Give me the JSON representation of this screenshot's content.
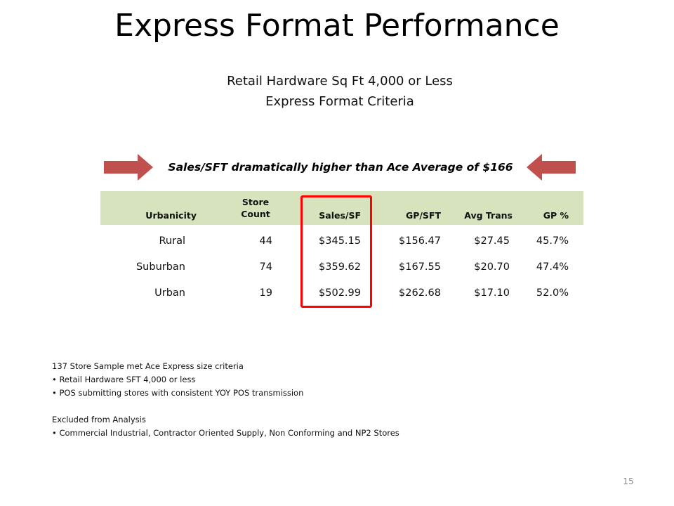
{
  "title": "Express Format Performance",
  "subtitle_1": "Retail Hardware Sq Ft 4,000 or Less",
  "subtitle_2": "Express Format Criteria",
  "highlight_text": "Sales/SFT dramatically higher than Ace Average of $166",
  "arrow_color": "#c0504d",
  "header_color": "#d6e3bc",
  "highlight_box_color": "#ff0000",
  "table": {
    "headers": {
      "urbanicity": "Urbanicity",
      "store": "Store",
      "count": "Count",
      "sales_sf": "Sales/SF",
      "gp_sft": "GP/SFT",
      "avg_trans": "Avg Trans",
      "gp_pct": "GP %"
    },
    "rows": [
      {
        "urbanicity": "Rural",
        "store_count": "44",
        "sales_sf": "$345.15",
        "gp_sft": "$156.47",
        "avg_trans": "$27.45",
        "gp_pct": "45.7%"
      },
      {
        "urbanicity": "Suburban",
        "store_count": "74",
        "sales_sf": "$359.62",
        "gp_sft": "$167.55",
        "avg_trans": "$20.70",
        "gp_pct": "47.4%"
      },
      {
        "urbanicity": "Urban",
        "store_count": "19",
        "sales_sf": "$502.99",
        "gp_sft": "$262.68",
        "avg_trans": "$17.10",
        "gp_pct": "52.0%"
      }
    ]
  },
  "notes": {
    "sample_heading": "137 Store Sample met Ace Express size criteria",
    "sample_bullets": [
      "Retail Hardware SFT 4,000 or less",
      "POS submitting stores with consistent YOY POS transmission"
    ],
    "excluded_heading": "Excluded from Analysis",
    "excluded_bullets": [
      "Commercial Industrial, Contractor Oriented Supply, Non Conforming and NP2 Stores"
    ]
  },
  "page_number": "15"
}
